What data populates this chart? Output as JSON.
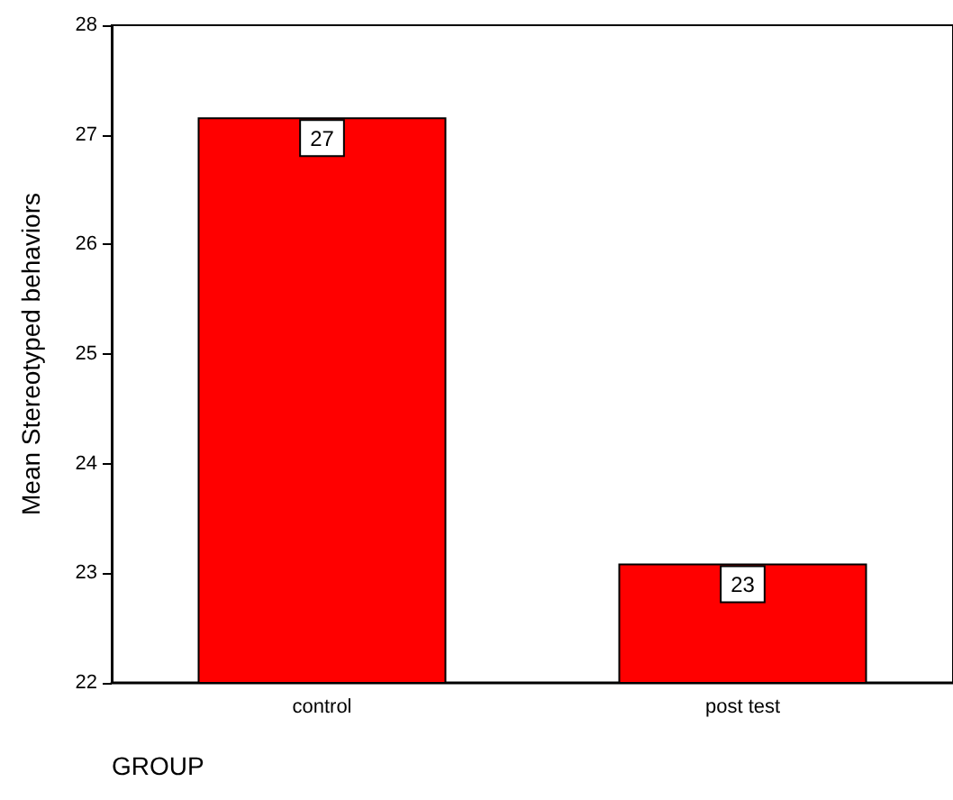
{
  "chart_data": {
    "type": "bar",
    "xlabel": "GROUP",
    "ylabel": "Mean Stereotyped behaviors",
    "categories": [
      "control",
      "post test"
    ],
    "values": [
      27.16,
      23.09
    ],
    "value_labels": [
      "27",
      "23"
    ],
    "color": "#ff0000",
    "ylim": [
      22,
      28
    ],
    "yticks": [
      22,
      23,
      24,
      25,
      26,
      27,
      28
    ],
    "grid": false
  }
}
